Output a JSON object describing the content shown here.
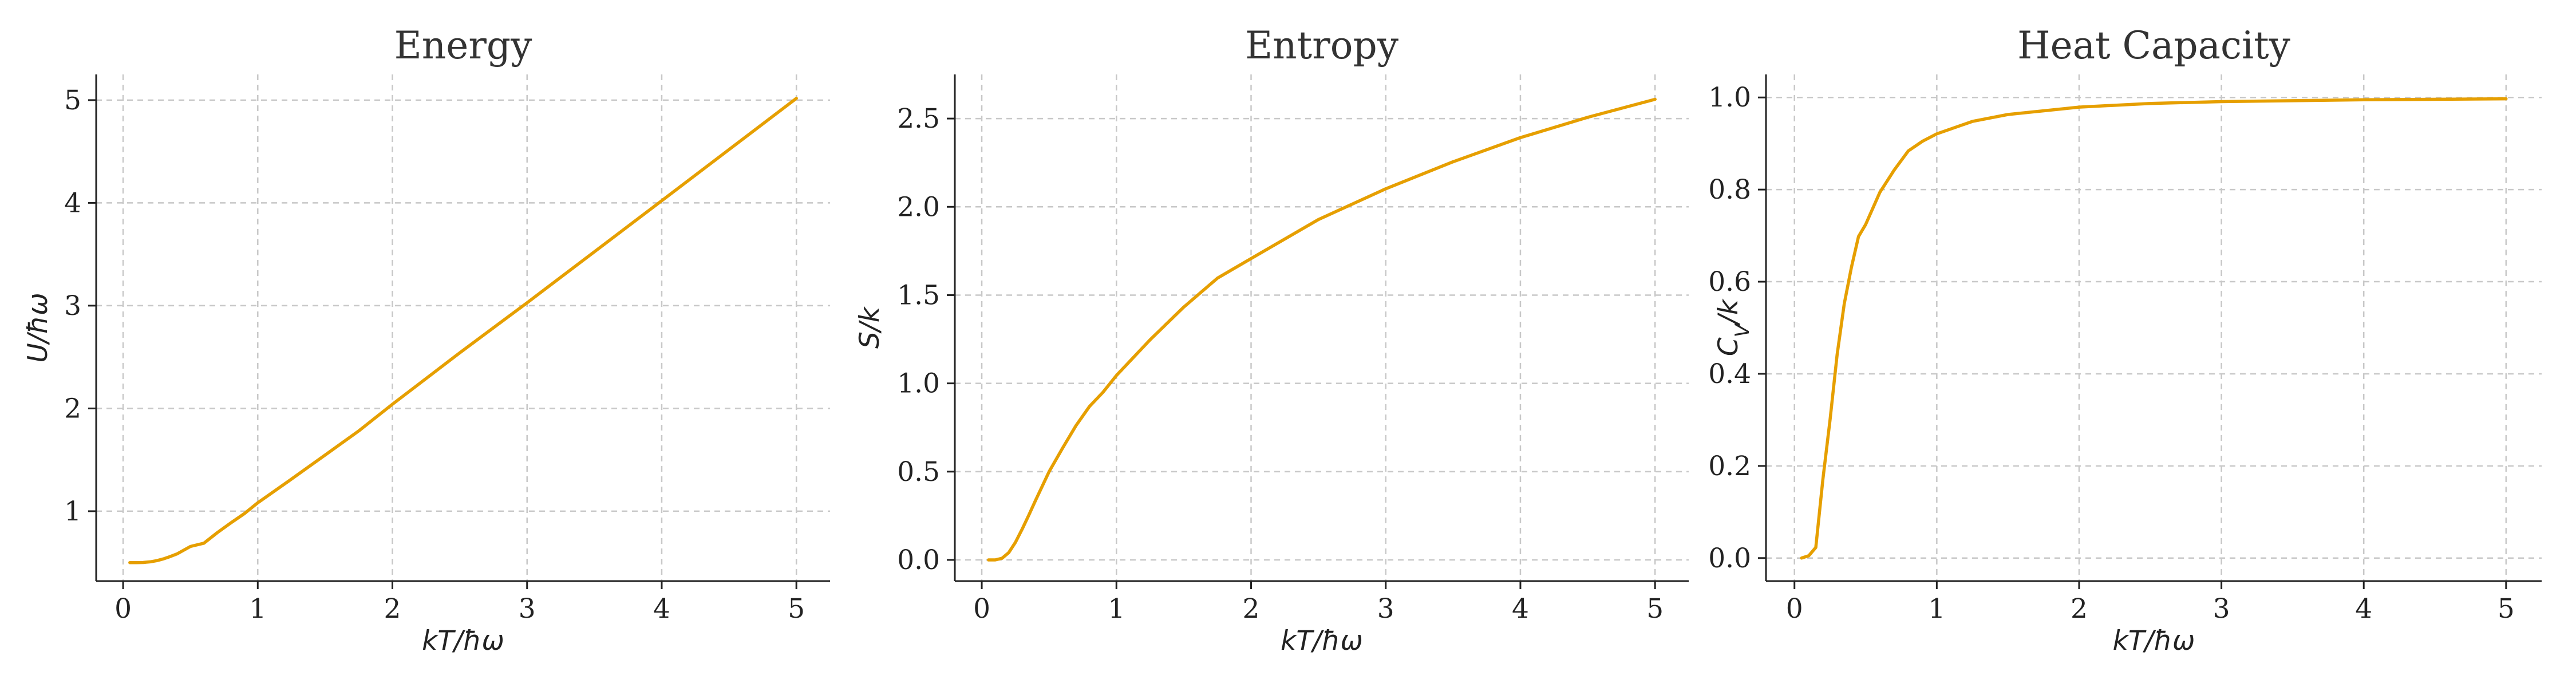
{
  "colors": {
    "line": "#E69F00",
    "grid": "#c8c8c8",
    "axis": "#222222"
  },
  "chart_data": [
    {
      "type": "line",
      "title": "Energy",
      "xlabel": "kT/ħω",
      "ylabel": "U/ħω",
      "xlim": [
        -0.2,
        5.25
      ],
      "ylim": [
        0.32,
        5.25
      ],
      "xticks": [
        0,
        1,
        2,
        3,
        4,
        5
      ],
      "yticks": [
        1,
        2,
        3,
        4,
        5
      ],
      "xtick_labels": [
        "0",
        "1",
        "2",
        "3",
        "4",
        "5"
      ],
      "ytick_labels": [
        "1",
        "2",
        "3",
        "4",
        "5"
      ],
      "grid": true,
      "series": [
        {
          "x": [
            0.05,
            0.1,
            0.15,
            0.2,
            0.25,
            0.3,
            0.35,
            0.4,
            0.5,
            0.6,
            0.7,
            0.8,
            0.9,
            1.0,
            1.25,
            1.5,
            1.75,
            2.0,
            2.5,
            3.0,
            3.5,
            4.0,
            4.5,
            5.0
          ],
          "y": [
            0.5,
            0.5,
            0.501,
            0.507,
            0.519,
            0.536,
            0.559,
            0.584,
            0.657,
            0.689,
            0.792,
            0.886,
            0.976,
            1.082,
            1.312,
            1.546,
            1.781,
            2.041,
            2.541,
            3.028,
            3.524,
            4.021,
            4.519,
            5.017
          ]
        }
      ]
    },
    {
      "type": "line",
      "title": "Entropy",
      "xlabel": "kT/ħω",
      "ylabel": "S/k",
      "xlim": [
        -0.2,
        5.25
      ],
      "ylim": [
        -0.12,
        2.75
      ],
      "xticks": [
        0,
        1,
        2,
        3,
        4,
        5
      ],
      "yticks": [
        0.0,
        0.5,
        1.0,
        1.5,
        2.0,
        2.5
      ],
      "xtick_labels": [
        "0",
        "1",
        "2",
        "3",
        "4",
        "5"
      ],
      "ytick_labels": [
        "0.0",
        "0.5",
        "1.0",
        "1.5",
        "2.0",
        "2.5"
      ],
      "grid": true,
      "series": [
        {
          "x": [
            0.05,
            0.1,
            0.15,
            0.2,
            0.25,
            0.3,
            0.35,
            0.4,
            0.5,
            0.6,
            0.7,
            0.8,
            0.9,
            1.0,
            1.25,
            1.5,
            1.75,
            2.0,
            2.5,
            3.0,
            3.5,
            4.0,
            4.5,
            5.0
          ],
          "y": [
            0.0,
            0.0,
            0.009,
            0.041,
            0.1,
            0.174,
            0.255,
            0.338,
            0.5,
            0.633,
            0.761,
            0.869,
            0.95,
            1.045,
            1.247,
            1.432,
            1.596,
            1.707,
            1.928,
            2.102,
            2.255,
            2.392,
            2.507,
            2.609
          ]
        }
      ]
    },
    {
      "type": "line",
      "title": "Heat Capacity",
      "xlabel": "kT/ħω",
      "ylabel": "C_V/k",
      "xlim": [
        -0.2,
        5.25
      ],
      "ylim": [
        -0.05,
        1.05
      ],
      "xticks": [
        0,
        1,
        2,
        3,
        4,
        5
      ],
      "yticks": [
        0.0,
        0.2,
        0.4,
        0.6,
        0.8,
        1.0
      ],
      "xtick_labels": [
        "0",
        "1",
        "2",
        "3",
        "4",
        "5"
      ],
      "ytick_labels": [
        "0.0",
        "0.2",
        "0.4",
        "0.6",
        "0.8",
        "1.0"
      ],
      "grid": true,
      "series": [
        {
          "x": [
            0.05,
            0.1,
            0.15,
            0.2,
            0.25,
            0.3,
            0.35,
            0.4,
            0.45,
            0.5,
            0.6,
            0.7,
            0.8,
            0.9,
            1.0,
            1.25,
            1.5,
            2.0,
            2.5,
            3.0,
            4.0,
            5.0
          ],
          "y": [
            0.0,
            0.005,
            0.023,
            0.171,
            0.3,
            0.442,
            0.552,
            0.631,
            0.698,
            0.724,
            0.794,
            0.842,
            0.884,
            0.905,
            0.921,
            0.948,
            0.963,
            0.979,
            0.987,
            0.991,
            0.995,
            0.997
          ]
        }
      ]
    }
  ]
}
